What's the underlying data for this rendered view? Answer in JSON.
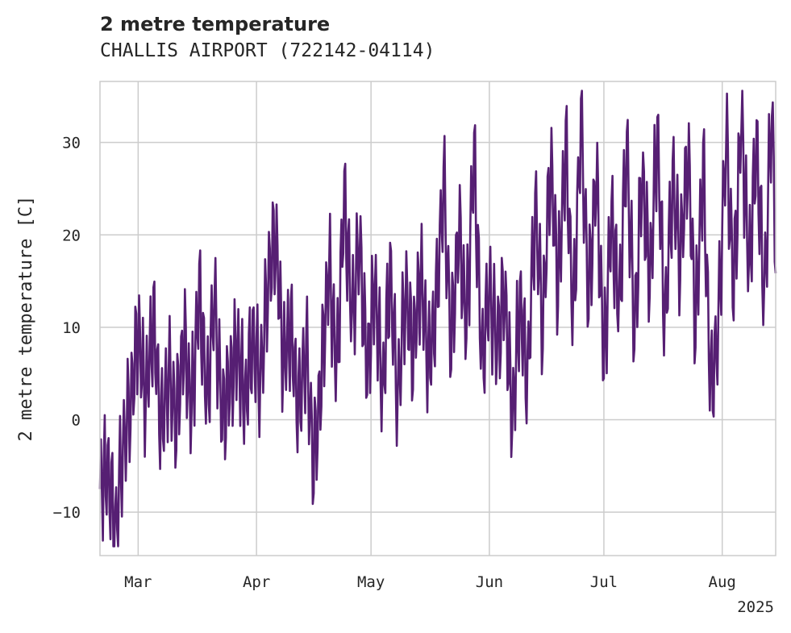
{
  "chart_data": {
    "type": "line",
    "title": "2 metre temperature",
    "subtitle": "CHALLIS AIRPORT (722142-04114)",
    "xlabel": "",
    "ylabel": "2 metre temperature [C]",
    "x_range": [
      "2025-02-19",
      "2025-08-15"
    ],
    "ylim": [
      -14.7,
      36.6
    ],
    "x_ticks": [
      {
        "date": "2025-03-01",
        "label": "Mar"
      },
      {
        "date": "2025-04-01",
        "label": "Apr"
      },
      {
        "date": "2025-05-01",
        "label": "May"
      },
      {
        "date": "2025-06-01",
        "label": "Jun"
      },
      {
        "date": "2025-07-01",
        "label": "Jul"
      },
      {
        "date": "2025-08-01",
        "label": "Aug"
      }
    ],
    "x_year_label": "2025",
    "y_ticks": [
      -10,
      0,
      10,
      20,
      30
    ],
    "grid": true,
    "legend": "none",
    "series": [
      {
        "color": "#561f73",
        "points": [
          [
            "2025-02-19",
            -7.5
          ],
          [
            "2025-02-21",
            -5.0
          ],
          [
            "2025-02-23",
            -12.0
          ],
          [
            "2025-02-25",
            -3.0
          ],
          [
            "2025-02-27",
            2.0
          ],
          [
            "2025-03-01",
            9.5
          ],
          [
            "2025-03-03",
            2.0
          ],
          [
            "2025-03-05",
            11.0
          ],
          [
            "2025-03-07",
            -1.0
          ],
          [
            "2025-03-09",
            5.0
          ],
          [
            "2025-03-11",
            0.0
          ],
          [
            "2025-03-13",
            9.0
          ],
          [
            "2025-03-15",
            1.0
          ],
          [
            "2025-03-17",
            14.0
          ],
          [
            "2025-03-19",
            2.0
          ],
          [
            "2025-03-21",
            13.0
          ],
          [
            "2025-03-23",
            0.0
          ],
          [
            "2025-03-25",
            4.0
          ],
          [
            "2025-03-27",
            8.0
          ],
          [
            "2025-03-29",
            2.0
          ],
          [
            "2025-03-31",
            9.0
          ],
          [
            "2025-04-02",
            4.0
          ],
          [
            "2025-04-04",
            15.0
          ],
          [
            "2025-04-06",
            20.0
          ],
          [
            "2025-04-08",
            6.0
          ],
          [
            "2025-04-10",
            10.0
          ],
          [
            "2025-04-12",
            1.0
          ],
          [
            "2025-04-14",
            8.0
          ],
          [
            "2025-04-16",
            -5.0
          ],
          [
            "2025-04-18",
            5.0
          ],
          [
            "2025-04-20",
            17.0
          ],
          [
            "2025-04-22",
            5.0
          ],
          [
            "2025-04-24",
            24.0
          ],
          [
            "2025-04-26",
            11.0
          ],
          [
            "2025-04-28",
            19.0
          ],
          [
            "2025-04-30",
            5.0
          ],
          [
            "2025-05-02",
            15.0
          ],
          [
            "2025-05-04",
            3.0
          ],
          [
            "2025-05-06",
            16.0
          ],
          [
            "2025-05-08",
            2.0
          ],
          [
            "2025-05-10",
            14.0
          ],
          [
            "2025-05-12",
            7.0
          ],
          [
            "2025-05-14",
            16.0
          ],
          [
            "2025-05-16",
            6.0
          ],
          [
            "2025-05-18",
            12.0
          ],
          [
            "2025-05-20",
            26.0
          ],
          [
            "2025-05-22",
            8.0
          ],
          [
            "2025-05-24",
            21.0
          ],
          [
            "2025-05-26",
            10.0
          ],
          [
            "2025-05-28",
            29.0
          ],
          [
            "2025-05-30",
            6.0
          ],
          [
            "2025-06-01",
            14.0
          ],
          [
            "2025-06-03",
            8.0
          ],
          [
            "2025-06-05",
            14.0
          ],
          [
            "2025-06-07",
            0.0
          ],
          [
            "2025-06-09",
            13.0
          ],
          [
            "2025-06-11",
            4.0
          ],
          [
            "2025-06-13",
            23.0
          ],
          [
            "2025-06-15",
            10.0
          ],
          [
            "2025-06-17",
            28.0
          ],
          [
            "2025-06-19",
            14.0
          ],
          [
            "2025-06-21",
            30.0
          ],
          [
            "2025-06-23",
            11.0
          ],
          [
            "2025-06-25",
            33.0
          ],
          [
            "2025-06-27",
            13.0
          ],
          [
            "2025-06-29",
            27.0
          ],
          [
            "2025-07-01",
            6.0
          ],
          [
            "2025-07-03",
            22.0
          ],
          [
            "2025-07-05",
            12.0
          ],
          [
            "2025-07-07",
            30.0
          ],
          [
            "2025-07-09",
            9.0
          ],
          [
            "2025-07-11",
            27.0
          ],
          [
            "2025-07-13",
            15.0
          ],
          [
            "2025-07-15",
            31.0
          ],
          [
            "2025-07-17",
            10.0
          ],
          [
            "2025-07-19",
            26.0
          ],
          [
            "2025-07-21",
            17.0
          ],
          [
            "2025-07-23",
            29.0
          ],
          [
            "2025-07-25",
            10.0
          ],
          [
            "2025-07-27",
            28.0
          ],
          [
            "2025-07-29",
            3.0
          ],
          [
            "2025-07-31",
            10.0
          ],
          [
            "2025-08-02",
            31.0
          ],
          [
            "2025-08-04",
            14.0
          ],
          [
            "2025-08-06",
            33.0
          ],
          [
            "2025-08-08",
            16.0
          ],
          [
            "2025-08-10",
            30.0
          ],
          [
            "2025-08-12",
            13.0
          ],
          [
            "2025-08-14",
            34.0
          ],
          [
            "2025-08-15",
            19.0
          ]
        ]
      }
    ]
  }
}
